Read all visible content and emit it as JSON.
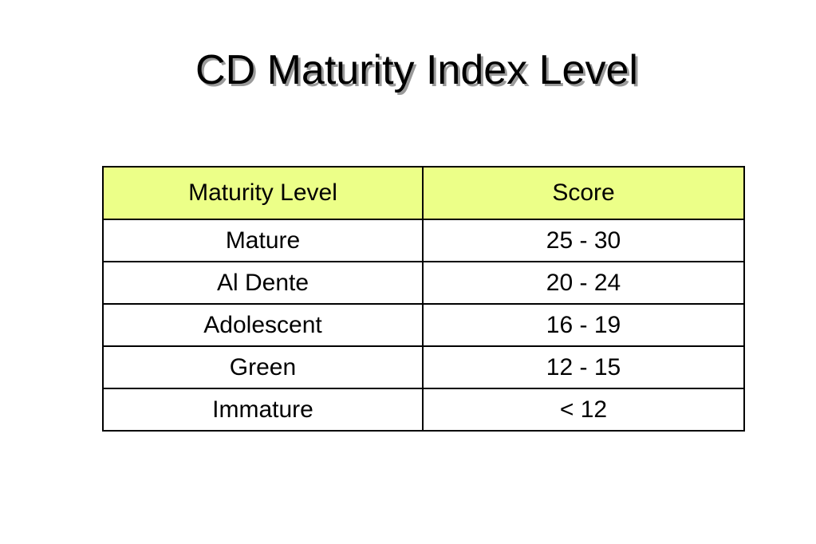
{
  "title": "CD Maturity Index Level",
  "table": {
    "header_bg": "#ecff88",
    "columns": [
      "Maturity Level",
      "Score"
    ],
    "rows": [
      [
        "Mature",
        "25 - 30"
      ],
      [
        "Al Dente",
        "20 - 24"
      ],
      [
        "Adolescent",
        "16 - 19"
      ],
      [
        "Green",
        "12 - 15"
      ],
      [
        "Immature",
        "< 12"
      ]
    ]
  }
}
